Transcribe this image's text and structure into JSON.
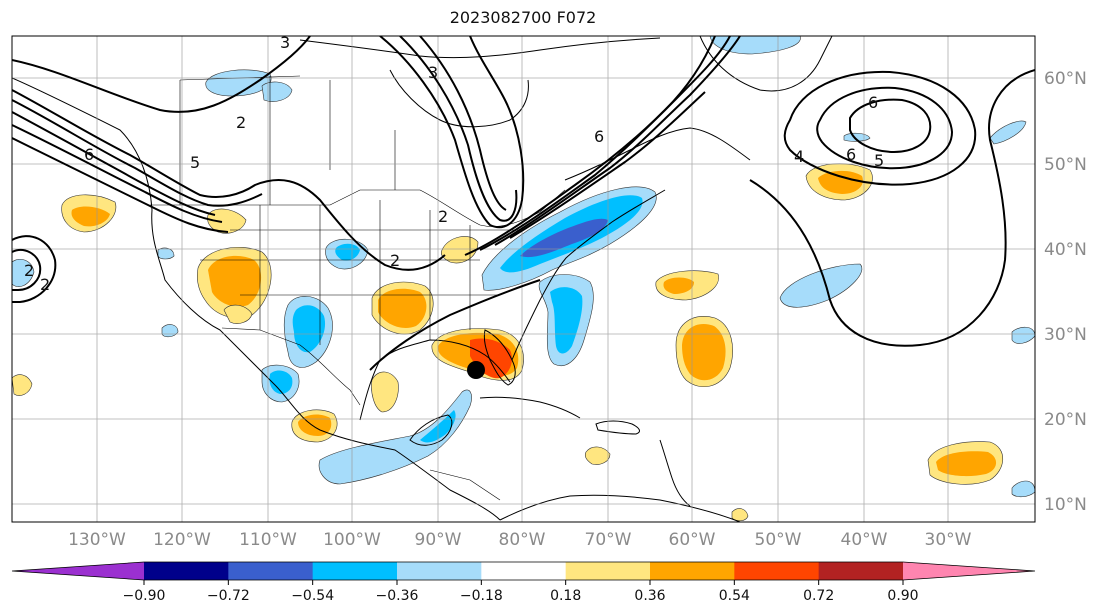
{
  "title": "2023082700 F072",
  "lon_labels": [
    "130°W",
    "120°W",
    "110°W",
    "100°W",
    "90°W",
    "80°W",
    "70°W",
    "60°W",
    "50°W",
    "40°W",
    "30°W"
  ],
  "lat_labels": [
    "60°N",
    "50°N",
    "40°N",
    "30°N",
    "20°N",
    "10°N"
  ],
  "colorbar": {
    "ticks": [
      "−0.90",
      "−0.72",
      "−0.54",
      "−0.36",
      "−0.18",
      "0.18",
      "0.36",
      "0.54",
      "0.72",
      "0.90"
    ],
    "colors": [
      "#9b30d0",
      "#00008b",
      "#3a5fcd",
      "#00bfff",
      "#a6dcfa",
      "#ffffff",
      "#ffe680",
      "#ffa500",
      "#ff4500",
      "#b22222",
      "#ff85b0"
    ]
  },
  "contour_labels": [
    "2",
    "2",
    "2",
    "3",
    "3",
    "5",
    "6",
    "6",
    "6",
    "6",
    "5",
    "4",
    "2",
    "2"
  ],
  "marker": {
    "name": "storm-center",
    "color": "#000000"
  }
}
